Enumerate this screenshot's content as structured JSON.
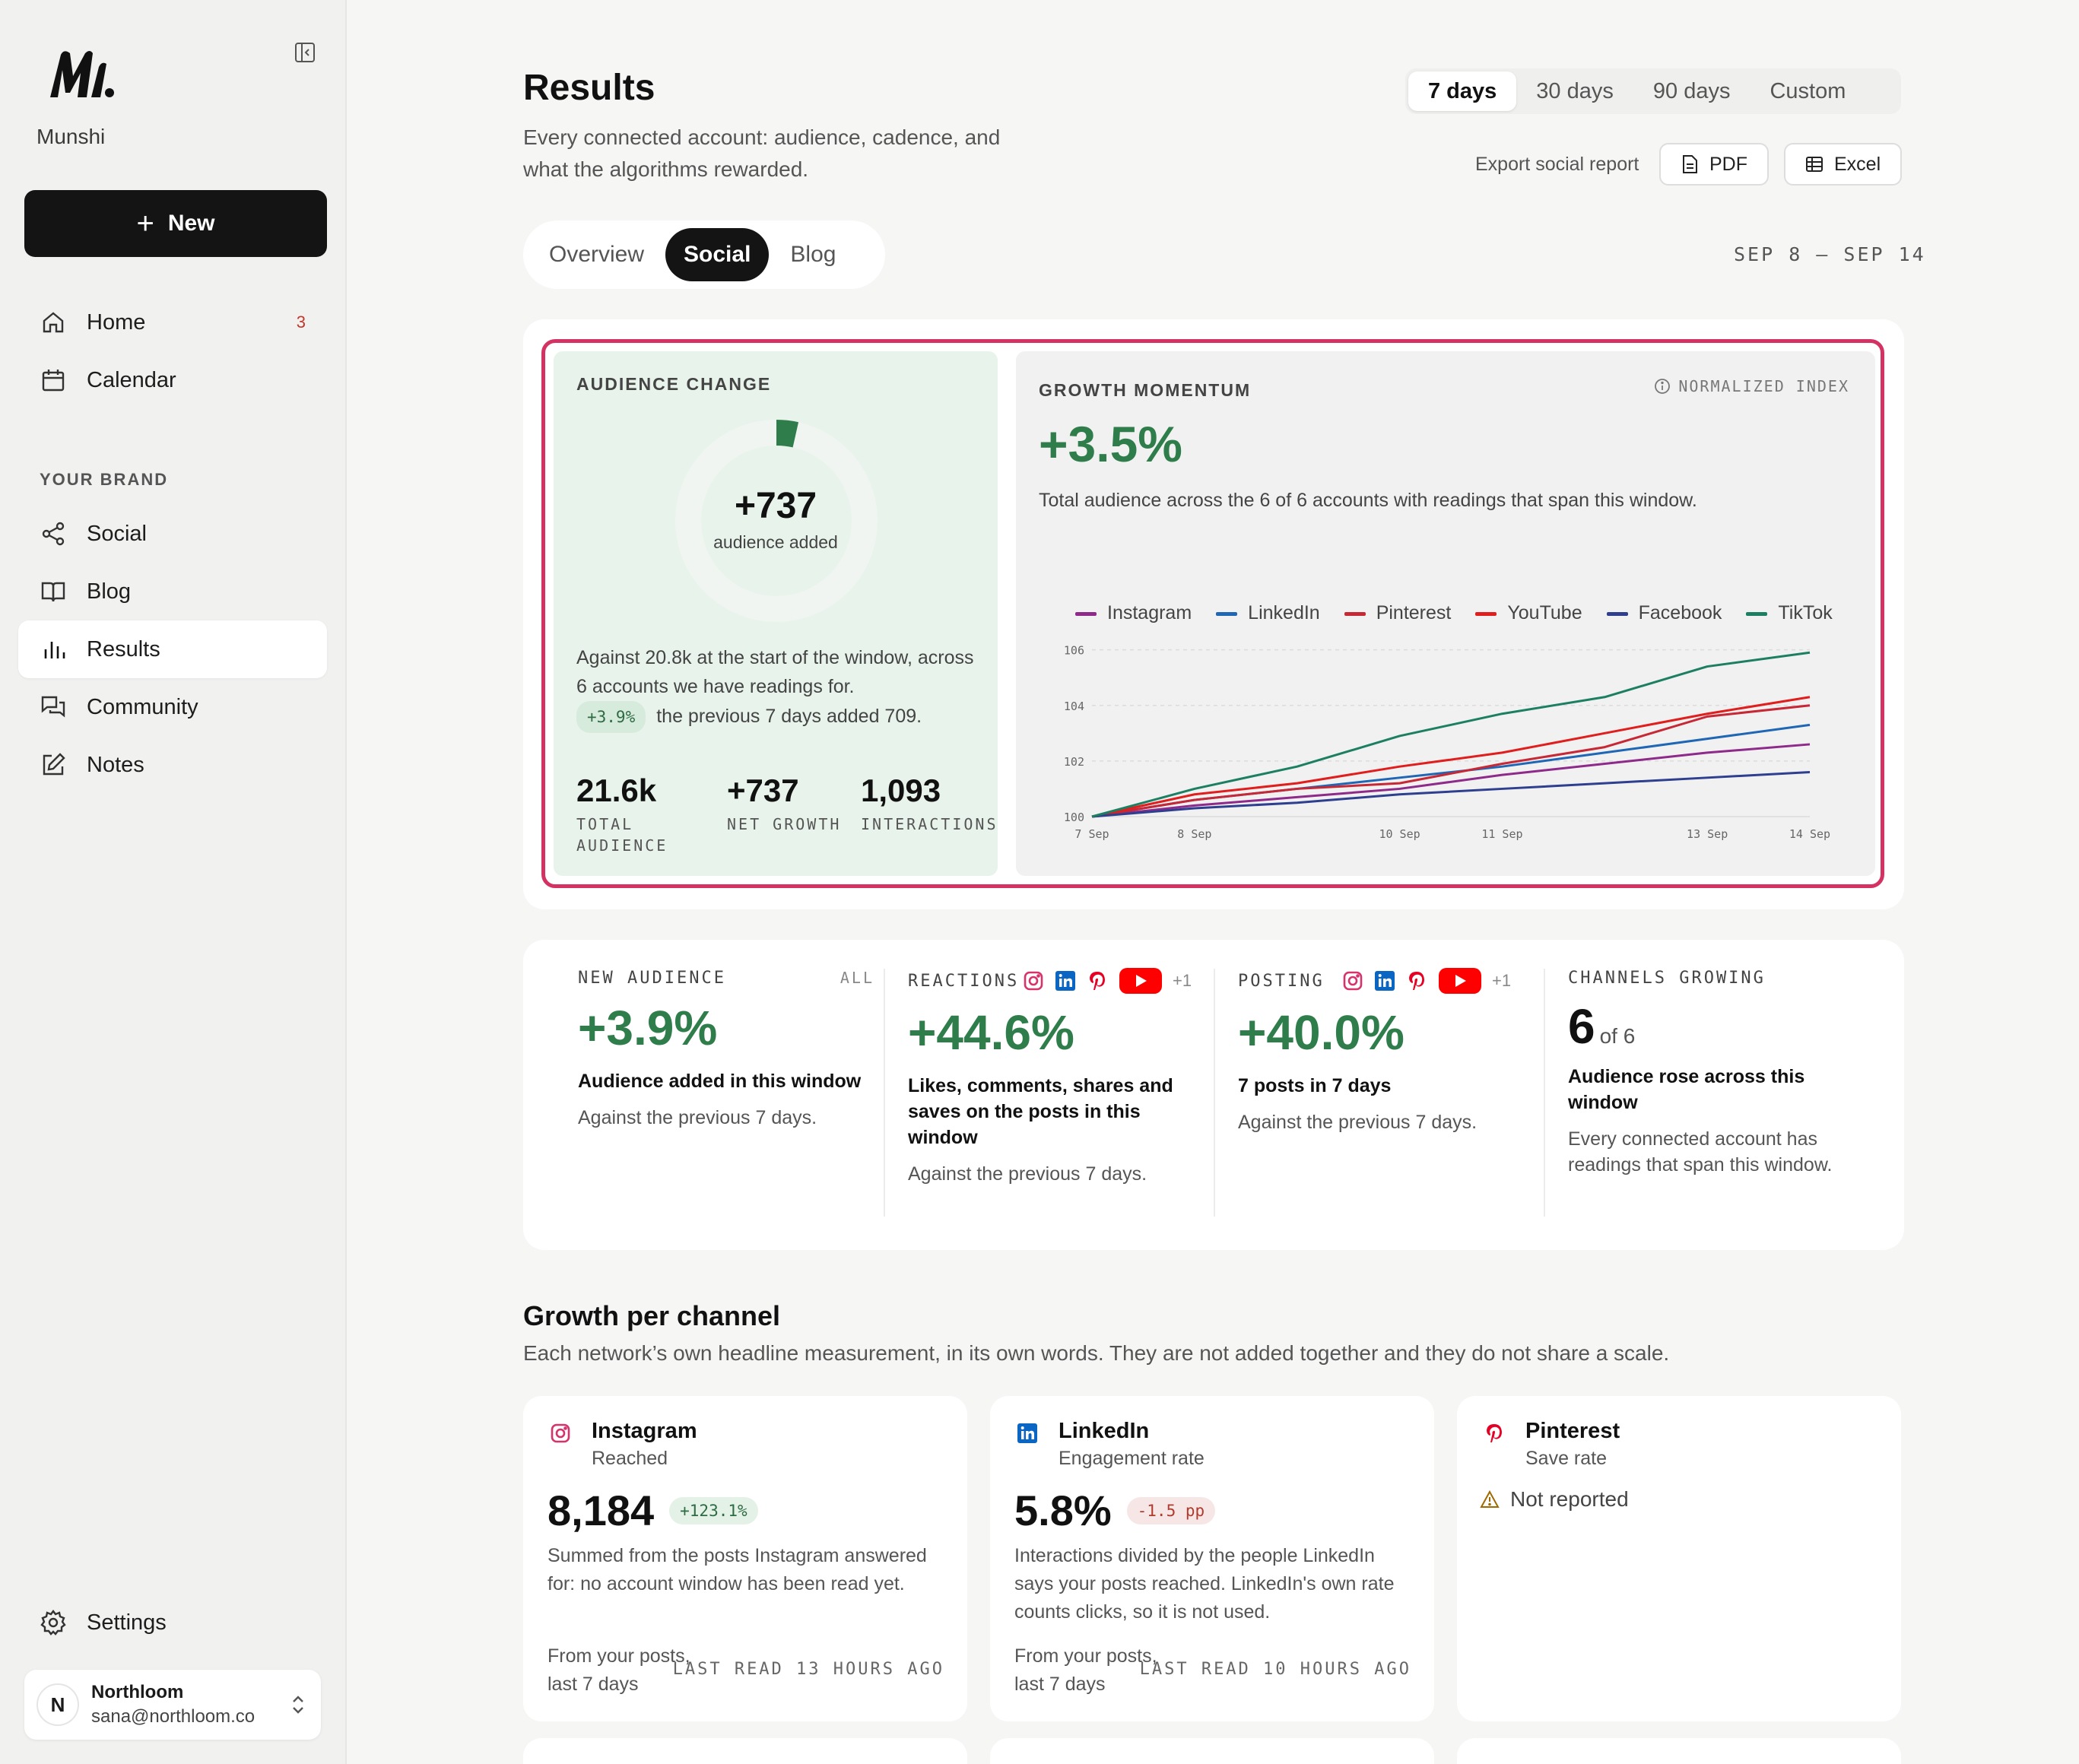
{
  "sidebar": {
    "brand": "Munshi",
    "new_label": "New",
    "nav": [
      {
        "label": "Home",
        "badge": "3"
      },
      {
        "label": "Calendar"
      }
    ],
    "section_label": "YOUR BRAND",
    "brand_nav": [
      {
        "label": "Social"
      },
      {
        "label": "Blog"
      },
      {
        "label": "Results"
      },
      {
        "label": "Community"
      },
      {
        "label": "Notes"
      }
    ],
    "settings_label": "Settings",
    "user": {
      "initial": "N",
      "name": "Northloom",
      "email": "sana@northloom.co"
    }
  },
  "header": {
    "title": "Results",
    "subtitle": "Every connected account: audience, cadence, and what the algorithms rewarded.",
    "ranges": [
      "7 days",
      "30 days",
      "90 days",
      "Custom"
    ],
    "selected_range": "7 days",
    "export_label": "Export social report",
    "pdf_label": "PDF",
    "excel_label": "Excel",
    "tabs": [
      "Overview",
      "Social",
      "Blog"
    ],
    "selected_tab": "Social",
    "date_range": "SEP 8 – SEP 14"
  },
  "audience_change": {
    "label": "AUDIENCE CHANGE",
    "value": "+737",
    "value_sub": "audience added",
    "ring_fraction": 0.035,
    "text_line1": "Against 20.8k at the start of the window, across 6 accounts we have readings for.",
    "pill": "+3.9%",
    "text_line2": "the previous 7 days added 709.",
    "stats": [
      {
        "value": "21.6k",
        "label": "TOTAL AUDIENCE"
      },
      {
        "value": "+737",
        "label": "NET GROWTH"
      },
      {
        "value": "1,093",
        "label": "INTERACTIONS"
      }
    ]
  },
  "growth_momentum": {
    "label": "GROWTH MOMENTUM",
    "index_label": "NORMALIZED INDEX",
    "value": "+3.5%",
    "description": "Total audience across the 6 of 6 accounts with readings that span this window."
  },
  "chart_data": {
    "type": "line",
    "x": [
      "7 Sep",
      "8 Sep",
      "9 Sep",
      "10 Sep",
      "11 Sep",
      "12 Sep",
      "13 Sep",
      "14 Sep"
    ],
    "x_tick_labels": [
      "7 Sep",
      "8 Sep",
      "10 Sep",
      "11 Sep",
      "13 Sep",
      "14 Sep"
    ],
    "y_ticks": [
      100,
      102,
      104,
      106
    ],
    "ylim": [
      100,
      106.4
    ],
    "grid": true,
    "legend": "top",
    "series": [
      {
        "name": "Instagram",
        "color": "#8e2a8a",
        "values": [
          100,
          100.4,
          100.7,
          101.0,
          101.5,
          101.9,
          102.3,
          102.6
        ]
      },
      {
        "name": "LinkedIn",
        "color": "#1f66b5",
        "values": [
          100,
          100.6,
          101.0,
          101.4,
          101.8,
          102.3,
          102.8,
          103.3
        ]
      },
      {
        "name": "Pinterest",
        "color": "#c62835",
        "values": [
          100,
          100.6,
          101.0,
          101.2,
          101.9,
          102.5,
          103.6,
          104.0
        ]
      },
      {
        "name": "YouTube",
        "color": "#e01e1e",
        "values": [
          100,
          100.8,
          101.2,
          101.8,
          102.3,
          103.0,
          103.7,
          104.3
        ]
      },
      {
        "name": "Facebook",
        "color": "#2f3f8f",
        "values": [
          100,
          100.3,
          100.5,
          100.8,
          101.0,
          101.2,
          101.4,
          101.6
        ]
      },
      {
        "name": "TikTok",
        "color": "#1d7f62",
        "values": [
          100,
          101.0,
          101.8,
          102.9,
          103.7,
          104.3,
          105.4,
          105.9
        ]
      }
    ]
  },
  "stats": [
    {
      "label": "NEW AUDIENCE",
      "tag": "ALL",
      "value": "+3.9%",
      "bold": "Audience added in this window",
      "gray": "Against the previous 7 days."
    },
    {
      "label": "REACTIONS",
      "more": "+1",
      "value": "+44.6%",
      "bold": "Likes, comments, shares and saves on the posts in this window",
      "gray": "Against the previous 7 days."
    },
    {
      "label": "POSTING",
      "more": "+1",
      "value": "+40.0%",
      "bold": "7 posts in 7 days",
      "gray": "Against the previous 7 days."
    },
    {
      "label": "CHANNELS GROWING",
      "value": "6",
      "value_suffix": "of 6",
      "bold": "Audience rose across this window",
      "gray": "Every connected account has readings that span this window."
    }
  ],
  "growth": {
    "title": "Growth per channel",
    "subtitle": "Each network’s own headline measurement, in its own words. They are not added together and they do not share a scale.",
    "channels": [
      {
        "name": "Instagram",
        "metric": "Reached",
        "value": "8,184",
        "change": "+123.1%",
        "desc": "Summed from the posts Instagram answered for: no account window has been read yet.",
        "foot1": "From your posts,",
        "foot2": "last 7 days",
        "last_read": "LAST READ 13 HOURS AGO"
      },
      {
        "name": "LinkedIn",
        "metric": "Engagement rate",
        "value": "5.8%",
        "change": "-1.5 pp",
        "desc": "Interactions divided by the people LinkedIn says your posts reached. LinkedIn's own rate counts clicks, so it is not used.",
        "foot1": "From your posts,",
        "foot2": "last 7 days",
        "last_read": "LAST READ 10 HOURS AGO"
      },
      {
        "name": "Pinterest",
        "metric": "Save rate",
        "not_reported": "Not reported"
      }
    ]
  },
  "colors": {
    "accent_green": "#2e7d4a",
    "highlight": "#d33262",
    "negative": "#c0392b"
  }
}
